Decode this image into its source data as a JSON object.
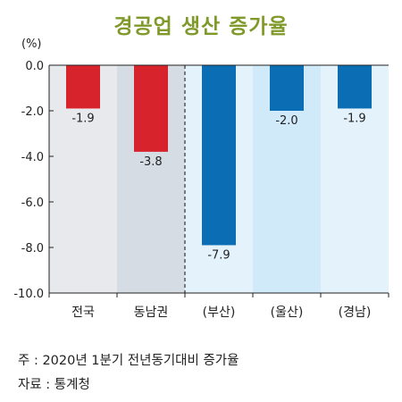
{
  "chart_data": {
    "type": "bar",
    "title": "경공업 생산 증가율",
    "unit": "(%)",
    "ylim": [
      -10.0,
      0.0
    ],
    "yticks": [
      "0.0",
      "-2.0",
      "-4.0",
      "-6.0",
      "-8.0",
      "-10.0"
    ],
    "ytick_values": [
      0,
      -2,
      -4,
      -6,
      -8,
      -10
    ],
    "grid": false,
    "categories": [
      "전국",
      "동남권",
      "(부산)",
      "(울산)",
      "(경남)"
    ],
    "values": [
      -1.9,
      -3.8,
      -7.9,
      -2.0,
      -1.9
    ],
    "value_labels": [
      "-1.9",
      "-3.8",
      "-7.9",
      "-2.0",
      "-1.9"
    ],
    "bar_colors": [
      "#d7232b",
      "#d7232b",
      "#0b6db4",
      "#0b6db4",
      "#0b6db4"
    ],
    "panel_colors": [
      "#e7e9ec",
      "#d5dce3",
      "#e3f2fb",
      "#d0eafa",
      "#e3f2fb"
    ]
  },
  "footnotes": {
    "note": "주 : 2020년 1분기 전년동기대비 증가율",
    "source": "자료 : 통계청"
  },
  "colors": {
    "title": "#7f9a2a",
    "axis": "#222222",
    "divider": "#333333"
  }
}
